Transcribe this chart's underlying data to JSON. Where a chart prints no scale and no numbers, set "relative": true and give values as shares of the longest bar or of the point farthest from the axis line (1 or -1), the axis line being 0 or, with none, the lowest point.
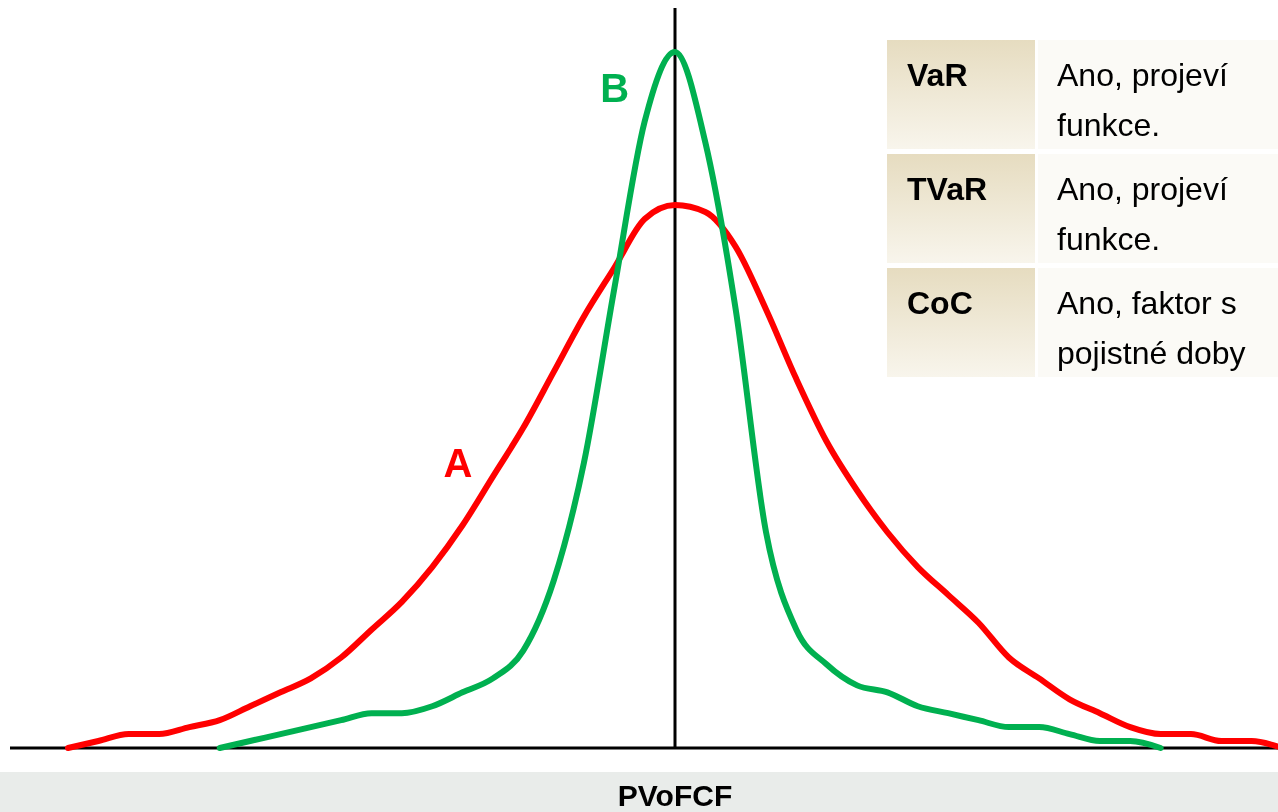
{
  "chart_data": [
    {
      "type": "line",
      "xlabel": "PVoFCF",
      "relative": true,
      "categories": [
        null,
        null,
        null,
        null,
        null,
        null,
        null,
        null,
        null,
        null,
        null,
        null,
        null,
        null,
        null,
        null,
        null,
        null,
        null,
        null,
        null,
        null,
        null,
        null,
        null,
        null,
        null,
        null,
        null,
        null,
        null,
        null,
        null,
        null,
        null,
        null,
        null,
        null,
        null,
        null,
        null
      ],
      "series": [
        {
          "name": "A",
          "color": "#ff0000",
          "values": [
            0,
            0.01,
            0.02,
            0.02,
            0.03,
            0.04,
            0.06,
            0.08,
            0.1,
            0.13,
            0.17,
            0.21,
            0.26,
            0.32,
            0.39,
            0.46,
            0.54,
            0.62,
            0.69,
            0.76,
            0.78,
            0.77,
            0.72,
            0.63,
            0.53,
            0.44,
            0.37,
            0.31,
            0.26,
            0.22,
            0.18,
            0.13,
            0.1,
            0.07,
            0.05,
            0.03,
            0.02,
            0.02,
            0.01,
            0.01,
            0
          ]
        },
        {
          "name": "B",
          "color": "#00b050",
          "values": [
            null,
            null,
            null,
            null,
            null,
            0,
            0.01,
            0.02,
            0.03,
            0.04,
            0.05,
            0.05,
            0.06,
            0.08,
            0.1,
            0.14,
            0.24,
            0.41,
            0.66,
            0.9,
            1,
            0.87,
            0.63,
            0.31,
            0.17,
            0.12,
            0.09,
            0.08,
            0.06,
            0.05,
            0.04,
            0.03,
            0.03,
            0.02,
            0.01,
            0.01,
            0,
            null,
            null,
            null,
            null
          ]
        }
      ],
      "marker": "none",
      "line_style": "solid"
    },
    {
      "type": "other",
      "annotations": [
        "VaR",
        "Ano, projeví\nfunkce.",
        "TVaR",
        "Ano, projeví\nfunkce.",
        "CoC",
        "Ano, faktor s\npojistné doby"
      ]
    }
  ]
}
